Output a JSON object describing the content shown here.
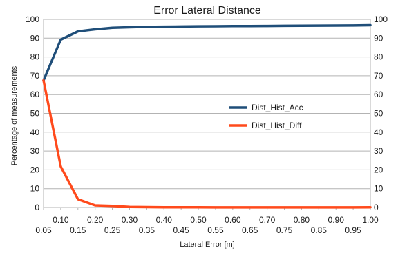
{
  "chart_data": {
    "type": "line",
    "title": "Error Lateral Distance",
    "xlabel": "Lateral Error [m]",
    "ylabel": "Percentage of measurements",
    "x": [
      0.05,
      0.1,
      0.15,
      0.2,
      0.25,
      0.3,
      0.35,
      0.4,
      0.45,
      0.5,
      0.55,
      0.6,
      0.65,
      0.7,
      0.75,
      0.8,
      0.85,
      0.9,
      0.95,
      1.0
    ],
    "x_ticks_upper": [
      "0.10",
      "0.20",
      "0.30",
      "0.40",
      "0.50",
      "0.60",
      "0.70",
      "0.80",
      "0.90",
      "1.00"
    ],
    "x_ticks_lower": [
      "0.05",
      "0.15",
      "0.25",
      "0.35",
      "0.45",
      "0.55",
      "0.65",
      "0.75",
      "0.85",
      "0.95"
    ],
    "ylim": [
      0,
      100
    ],
    "y_ticks": [
      "0",
      "10",
      "20",
      "30",
      "40",
      "50",
      "60",
      "70",
      "80",
      "90",
      "100"
    ],
    "grid": true,
    "legend_position": "center-right",
    "series": [
      {
        "name": "Dist_Hist_Acc",
        "color": "#1f4e79",
        "values": [
          67.5,
          89.2,
          93.6,
          94.7,
          95.5,
          95.8,
          96.0,
          96.1,
          96.2,
          96.3,
          96.35,
          96.4,
          96.45,
          96.5,
          96.55,
          96.6,
          96.65,
          96.7,
          96.75,
          96.9
        ]
      },
      {
        "name": "Dist_Hist_Diff",
        "color": "#ff4a1c",
        "values": [
          67.5,
          21.8,
          4.4,
          1.1,
          0.8,
          0.3,
          0.2,
          0.1,
          0.1,
          0.1,
          0.05,
          0.05,
          0.05,
          0.05,
          0.05,
          0.05,
          0.05,
          0.05,
          0.05,
          0.1
        ]
      }
    ]
  }
}
